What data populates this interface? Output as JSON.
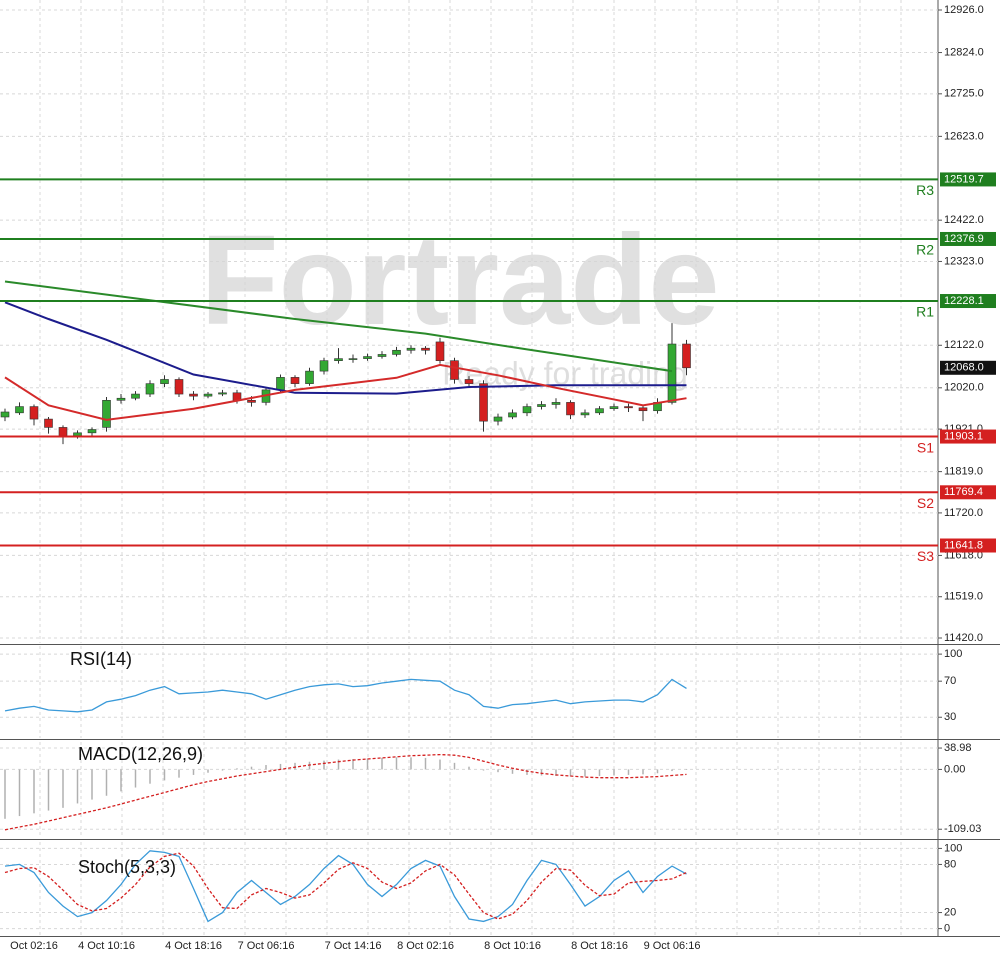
{
  "watermark": {
    "brand": "Fortrade",
    "tagline": "Ready for trading"
  },
  "chart_data": [
    {
      "type": "candlestick",
      "categories": [
        null,
        null,
        "Oct 02:16",
        null,
        null,
        null,
        null,
        "4 Oct 10:16",
        null,
        null,
        null,
        null,
        null,
        "4 Oct 18:16",
        null,
        null,
        null,
        null,
        "7 Oct 06:16",
        null,
        null,
        null,
        null,
        null,
        "7 Oct 14:16",
        null,
        null,
        null,
        null,
        "8 Oct 02:16",
        null,
        null,
        null,
        null,
        null,
        "8 Oct 10:16",
        null,
        null,
        null,
        null,
        null,
        "8 Oct 18:16",
        null,
        null,
        null,
        null,
        "9 Oct 06:16",
        null
      ],
      "open": [
        11950,
        11960,
        11975,
        11945,
        11925,
        11905,
        11912,
        11925,
        11990,
        11995,
        12005,
        12030,
        12040,
        12005,
        12000,
        12005,
        12008,
        11990,
        11985,
        12015,
        12045,
        12030,
        12060,
        12085,
        12090,
        12090,
        12095,
        12100,
        12110,
        12115,
        12130,
        12085,
        12040,
        12030,
        11940,
        11950,
        11960,
        11975,
        11980,
        11985,
        11955,
        11960,
        11970,
        11975,
        11972,
        11965,
        11985,
        12125
      ],
      "high": [
        11970,
        11985,
        11980,
        11950,
        11930,
        11918,
        11925,
        11998,
        12005,
        12012,
        12038,
        12050,
        12045,
        12012,
        12010,
        12015,
        12015,
        12000,
        12022,
        12052,
        12050,
        12068,
        12092,
        12115,
        12100,
        12102,
        12108,
        12118,
        12122,
        12120,
        12140,
        12092,
        12048,
        12038,
        11958,
        11968,
        11982,
        11988,
        11995,
        11990,
        11968,
        11976,
        11982,
        11982,
        11978,
        11995,
        12175,
        12135
      ],
      "low": [
        11940,
        11955,
        11930,
        11910,
        11885,
        11898,
        11905,
        11915,
        11982,
        11990,
        11998,
        12022,
        11998,
        11990,
        11995,
        12000,
        11982,
        11975,
        11978,
        12008,
        12022,
        12025,
        12052,
        12078,
        12080,
        12085,
        12090,
        12095,
        12102,
        12100,
        12078,
        12030,
        12020,
        11915,
        11930,
        11945,
        11952,
        11968,
        11970,
        11945,
        11948,
        11955,
        11965,
        11962,
        11940,
        11958,
        11980,
        12050
      ],
      "close": [
        11962,
        11975,
        11945,
        11925,
        11905,
        11912,
        11920,
        11990,
        11995,
        12005,
        12030,
        12040,
        12005,
        12000,
        12005,
        12008,
        11990,
        11985,
        12015,
        12045,
        12030,
        12060,
        12085,
        12090,
        12090,
        12095,
        12100,
        12110,
        12115,
        12110,
        12085,
        12040,
        12030,
        11940,
        11950,
        11960,
        11975,
        11980,
        11985,
        11955,
        11960,
        11970,
        11975,
        11972,
        11965,
        11985,
        12125,
        12068
      ],
      "up_color": "#33a833",
      "down_color": "#d42020",
      "series": [
        {
          "color": "#2a8a2a",
          "x": [
            0,
            10,
            20,
            29,
            36,
            46
          ],
          "values": [
            12275,
            12230,
            12185,
            12150,
            12112,
            12060
          ]
        },
        {
          "color": "#1c1c8c",
          "x": [
            0,
            3,
            7,
            13,
            20,
            27,
            32,
            38,
            47
          ],
          "values": [
            12225,
            12185,
            12135,
            12052,
            12008,
            12006,
            12022,
            12026,
            12026
          ]
        },
        {
          "color": "#d42a2a",
          "x": [
            0,
            3,
            7,
            13,
            20,
            27,
            30,
            34,
            38,
            44,
            47
          ],
          "values": [
            12045,
            11978,
            11943,
            11970,
            12015,
            12044,
            12075,
            12050,
            12020,
            11978,
            11995
          ]
        }
      ],
      "levels": [
        {
          "name": "R3",
          "value": 12519.7,
          "color": "#1f7f1f"
        },
        {
          "name": "R2",
          "value": 12376.9,
          "color": "#1f7f1f"
        },
        {
          "name": "R1",
          "value": 12228.1,
          "color": "#1f7f1f"
        },
        {
          "name": "S1",
          "value": 11903.1,
          "color": "#d42020"
        },
        {
          "name": "S2",
          "value": 11769.4,
          "color": "#d42020"
        },
        {
          "name": "S3",
          "value": 11641.8,
          "color": "#d42020"
        }
      ],
      "last_price": {
        "value": 12068,
        "label": "12068.0"
      },
      "ylim": [
        11408,
        12950
      ],
      "yticks": [
        {
          "value": 12926,
          "label": "12926.0"
        },
        {
          "value": 12824,
          "label": "12824.0"
        },
        {
          "value": 12725,
          "label": "12725.0"
        },
        {
          "value": 12623,
          "label": "12623.0"
        },
        {
          "value": 12422,
          "label": "12422.0"
        },
        {
          "value": 12323,
          "label": "12323.0"
        },
        {
          "value": 12122,
          "label": "12122.0"
        },
        {
          "value": 12020,
          "label": "12020.0"
        },
        {
          "value": 11921,
          "label": "11921.0"
        },
        {
          "value": 11819,
          "label": "11819.0"
        },
        {
          "value": 11720,
          "label": "11720.0"
        },
        {
          "value": 11618,
          "label": "11618.0"
        },
        {
          "value": 11519,
          "label": "11519.0"
        },
        {
          "value": 11420,
          "label": "11420.0"
        }
      ],
      "grid": true
    },
    {
      "type": "line",
      "title": "RSI(14)",
      "series": [
        {
          "color": "#3a9ad9",
          "dashed": false,
          "values": [
            37,
            40,
            42,
            38,
            37,
            36,
            38,
            47,
            50,
            54,
            60,
            64,
            56,
            57,
            58,
            60,
            58,
            56,
            50,
            55,
            60,
            64,
            66,
            67,
            64,
            65,
            68,
            70,
            72,
            71,
            70,
            60,
            55,
            42,
            40,
            44,
            45,
            47,
            49,
            45,
            47,
            48,
            49,
            49,
            47,
            55,
            72,
            62
          ]
        }
      ],
      "ylim": [
        7,
        109
      ],
      "yticks": [
        100,
        70,
        30
      ],
      "grid": true
    },
    {
      "type": "macd",
      "title": "MACD(12,26,9)",
      "histogram": {
        "color": "#b0b0b0",
        "values": [
          -90,
          -85,
          -80,
          -75,
          -70,
          -62,
          -55,
          -48,
          -40,
          -33,
          -26,
          -20,
          -15,
          -10,
          -6,
          -2,
          2,
          5,
          8,
          10,
          12,
          14,
          16,
          18,
          19,
          20,
          21,
          22,
          22,
          21,
          18,
          12,
          5,
          -2,
          -5,
          -8,
          -10,
          -11,
          -12,
          -13,
          -13,
          -12,
          -11,
          -10,
          -9,
          -7,
          -3,
          -1
        ]
      },
      "series": [
        {
          "color": "#d42020",
          "dashed": true,
          "values": [
            -110,
            -105,
            -100,
            -94,
            -88,
            -82,
            -76,
            -70,
            -63,
            -56,
            -49,
            -42,
            -35,
            -28,
            -22,
            -17,
            -12,
            -8,
            -4,
            0,
            4,
            8,
            11,
            14,
            17,
            19,
            21,
            23,
            25,
            26,
            27,
            26,
            22,
            15,
            8,
            2,
            -3,
            -7,
            -10,
            -12,
            -14,
            -15,
            -15,
            -15,
            -14,
            -13,
            -11,
            -9
          ]
        }
      ],
      "ylim": [
        -125,
        50
      ],
      "yticks": [
        38.98,
        {
          "value": 0,
          "label": "0.00"
        },
        -109.03
      ],
      "grid": true
    },
    {
      "type": "line",
      "title": "Stoch(5,3,3)",
      "series": [
        {
          "color": "#3a9ad9",
          "dashed": false,
          "values": [
            78,
            80,
            70,
            45,
            28,
            15,
            20,
            35,
            55,
            80,
            97,
            95,
            90,
            50,
            9,
            20,
            45,
            60,
            45,
            30,
            40,
            55,
            75,
            91,
            80,
            55,
            40,
            55,
            75,
            85,
            78,
            40,
            12,
            9,
            15,
            30,
            60,
            85,
            80,
            55,
            28,
            40,
            60,
            72,
            45,
            65,
            78,
            68
          ]
        },
        {
          "color": "#d42020",
          "dashed": true,
          "values": [
            70,
            75,
            76,
            65,
            48,
            30,
            22,
            25,
            38,
            55,
            77,
            90,
            94,
            78,
            50,
            26,
            25,
            42,
            50,
            45,
            38,
            42,
            57,
            74,
            82,
            75,
            58,
            50,
            57,
            72,
            80,
            67,
            43,
            20,
            12,
            18,
            35,
            58,
            75,
            73,
            54,
            41,
            43,
            57,
            59,
            60,
            62,
            70
          ]
        }
      ],
      "ylim": [
        -8,
        108
      ],
      "yticks": [
        100,
        80,
        20,
        0
      ],
      "grid": true
    }
  ]
}
